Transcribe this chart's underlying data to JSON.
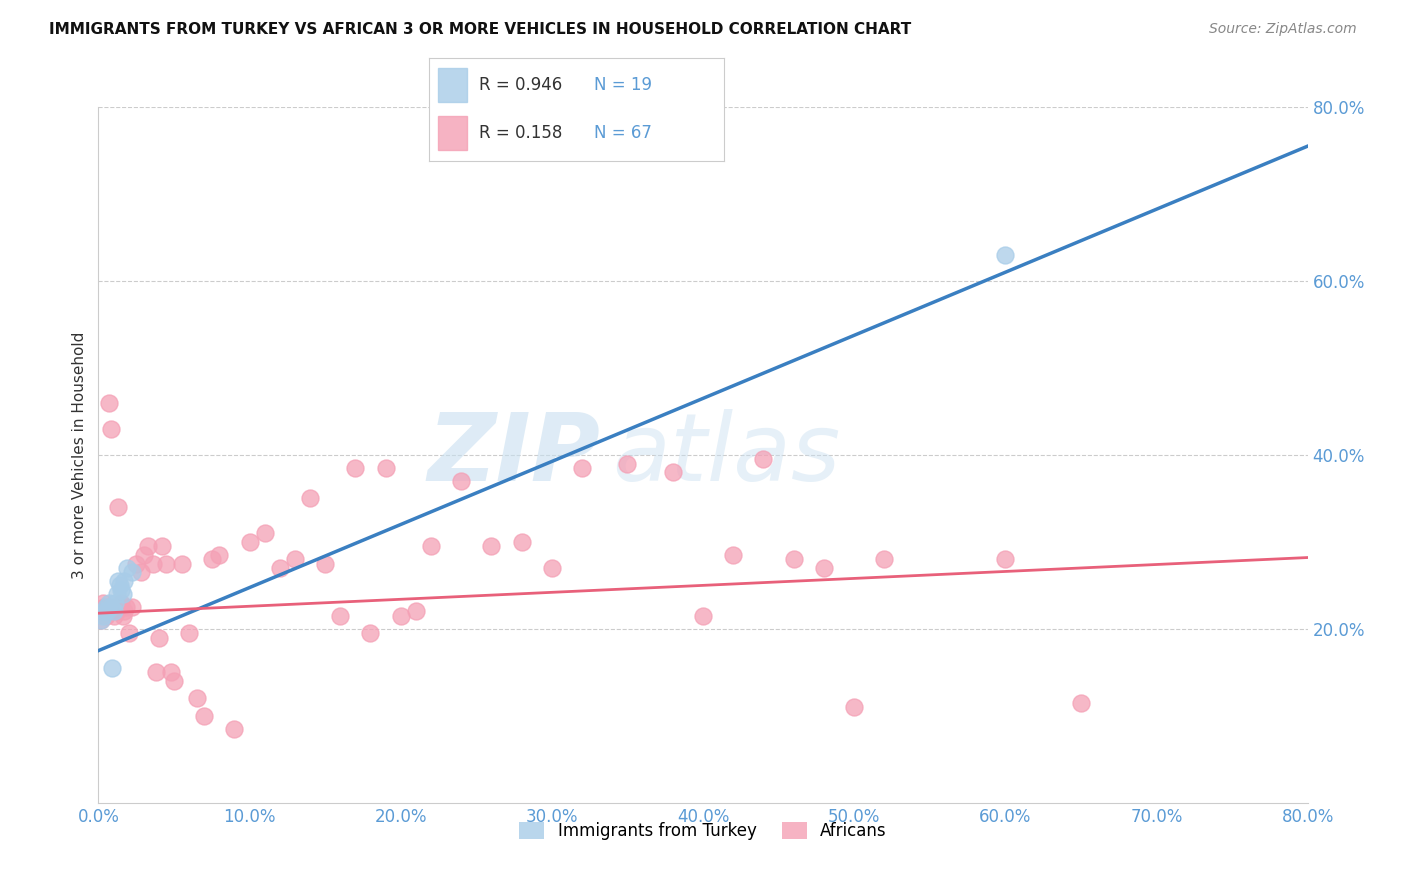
{
  "title": "IMMIGRANTS FROM TURKEY VS AFRICAN 3 OR MORE VEHICLES IN HOUSEHOLD CORRELATION CHART",
  "source": "Source: ZipAtlas.com",
  "tick_color": "#5b9bd5",
  "ylabel": "3 or more Vehicles in Household",
  "legend_labels": [
    "Immigrants from Turkey",
    "Africans"
  ],
  "R_turkey": 0.946,
  "N_turkey": 19,
  "R_african": 0.158,
  "N_african": 67,
  "blue_scatter_color": "#a8cce8",
  "pink_scatter_color": "#f4a0b5",
  "blue_line_color": "#3a7fc1",
  "pink_line_color": "#e8607a",
  "xlim": [
    0.0,
    0.8
  ],
  "ylim": [
    0.0,
    0.8
  ],
  "x_ticks": [
    0.0,
    0.1,
    0.2,
    0.3,
    0.4,
    0.5,
    0.6,
    0.7,
    0.8
  ],
  "y_ticks_right": [
    0.2,
    0.4,
    0.6,
    0.8
  ],
  "watermark_zip": "ZIP",
  "watermark_atlas": "atlas",
  "turkey_x": [
    0.002,
    0.003,
    0.004,
    0.005,
    0.006,
    0.007,
    0.008,
    0.009,
    0.01,
    0.011,
    0.012,
    0.013,
    0.014,
    0.015,
    0.016,
    0.017,
    0.019,
    0.022,
    0.6
  ],
  "turkey_y": [
    0.21,
    0.215,
    0.22,
    0.225,
    0.22,
    0.23,
    0.225,
    0.155,
    0.22,
    0.23,
    0.24,
    0.255,
    0.25,
    0.245,
    0.24,
    0.255,
    0.27,
    0.265,
    0.63
  ],
  "african_x": [
    0.001,
    0.002,
    0.003,
    0.004,
    0.005,
    0.006,
    0.007,
    0.008,
    0.009,
    0.01,
    0.011,
    0.012,
    0.013,
    0.014,
    0.015,
    0.016,
    0.017,
    0.018,
    0.02,
    0.022,
    0.025,
    0.028,
    0.03,
    0.033,
    0.036,
    0.038,
    0.04,
    0.042,
    0.045,
    0.048,
    0.05,
    0.055,
    0.06,
    0.065,
    0.07,
    0.075,
    0.08,
    0.09,
    0.1,
    0.11,
    0.12,
    0.13,
    0.14,
    0.15,
    0.16,
    0.17,
    0.18,
    0.19,
    0.2,
    0.21,
    0.22,
    0.24,
    0.26,
    0.28,
    0.3,
    0.32,
    0.35,
    0.38,
    0.4,
    0.42,
    0.44,
    0.46,
    0.48,
    0.5,
    0.52,
    0.6,
    0.65
  ],
  "african_y": [
    0.22,
    0.21,
    0.23,
    0.225,
    0.215,
    0.22,
    0.46,
    0.43,
    0.22,
    0.215,
    0.225,
    0.22,
    0.34,
    0.225,
    0.23,
    0.215,
    0.22,
    0.225,
    0.195,
    0.225,
    0.275,
    0.265,
    0.285,
    0.295,
    0.275,
    0.15,
    0.19,
    0.295,
    0.275,
    0.15,
    0.14,
    0.275,
    0.195,
    0.12,
    0.1,
    0.28,
    0.285,
    0.085,
    0.3,
    0.31,
    0.27,
    0.28,
    0.35,
    0.275,
    0.215,
    0.385,
    0.195,
    0.385,
    0.215,
    0.22,
    0.295,
    0.37,
    0.295,
    0.3,
    0.27,
    0.385,
    0.39,
    0.38,
    0.215,
    0.285,
    0.395,
    0.28,
    0.27,
    0.11,
    0.28,
    0.28,
    0.115
  ],
  "blue_trend_x0": 0.0,
  "blue_trend_y0": 0.175,
  "blue_trend_x1": 0.8,
  "blue_trend_y1": 0.755,
  "pink_trend_x0": 0.0,
  "pink_trend_y0": 0.218,
  "pink_trend_x1": 0.8,
  "pink_trend_y1": 0.282
}
